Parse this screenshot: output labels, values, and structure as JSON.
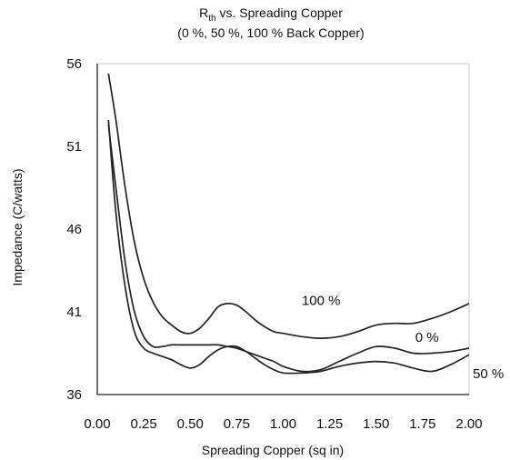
{
  "chart_data": {
    "type": "line",
    "title_main": "R",
    "title_sub": "th",
    "title_rest": " vs. Spreading Copper",
    "subtitle": "(0 %, 50 %, 100 % Back Copper)",
    "xlabel": "Spreading Copper (sq in)",
    "ylabel": "Impedance (C/watts)",
    "xlim": [
      0,
      2
    ],
    "ylim": [
      36,
      56
    ],
    "xticks": [
      "0.00",
      "0.25",
      "0.50",
      "0.75",
      "1.00",
      "1.25",
      "1.50",
      "1.75",
      "2.00"
    ],
    "yticks": [
      "36",
      "41",
      "46",
      "51",
      "56"
    ],
    "grid": false,
    "series": [
      {
        "name": "100 %",
        "x": [
          0.06,
          0.1,
          0.15,
          0.2,
          0.25,
          0.3,
          0.35,
          0.4,
          0.45,
          0.5,
          0.55,
          0.6,
          0.65,
          0.7,
          0.75,
          0.8,
          0.85,
          0.9,
          0.95,
          1.0,
          1.1,
          1.2,
          1.3,
          1.4,
          1.5,
          1.6,
          1.7,
          1.8,
          1.9,
          2.0
        ],
        "y": [
          55.4,
          52.6,
          48.5,
          45.2,
          43.0,
          41.6,
          40.7,
          40.2,
          39.8,
          39.7,
          40.0,
          40.6,
          41.3,
          41.5,
          41.4,
          41.0,
          40.5,
          40.1,
          39.8,
          39.7,
          39.5,
          39.4,
          39.5,
          39.8,
          40.2,
          40.3,
          40.3,
          40.6,
          41.0,
          41.5
        ]
      },
      {
        "name": "0 %",
        "x": [
          0.06,
          0.1,
          0.15,
          0.2,
          0.25,
          0.3,
          0.35,
          0.4,
          0.45,
          0.5,
          0.55,
          0.6,
          0.65,
          0.7,
          0.75,
          0.8,
          0.85,
          0.9,
          0.95,
          1.0,
          1.1,
          1.2,
          1.3,
          1.4,
          1.5,
          1.6,
          1.7,
          1.8,
          1.9,
          2.0
        ],
        "y": [
          52.3,
          48.5,
          44.0,
          41.0,
          39.5,
          38.9,
          38.9,
          39.0,
          39.0,
          39.0,
          39.0,
          39.0,
          39.0,
          38.9,
          38.8,
          38.6,
          38.4,
          38.2,
          38.0,
          37.7,
          37.4,
          37.5,
          38.0,
          38.5,
          38.9,
          38.8,
          38.5,
          38.5,
          38.6,
          38.8
        ]
      },
      {
        "name": "50 %",
        "x": [
          0.06,
          0.1,
          0.15,
          0.2,
          0.25,
          0.3,
          0.35,
          0.4,
          0.45,
          0.5,
          0.55,
          0.6,
          0.65,
          0.7,
          0.75,
          0.8,
          0.85,
          0.9,
          0.95,
          1.0,
          1.1,
          1.2,
          1.3,
          1.4,
          1.5,
          1.6,
          1.7,
          1.8,
          1.9,
          2.0
        ],
        "y": [
          52.6,
          47.0,
          42.5,
          39.8,
          38.8,
          38.5,
          38.3,
          38.1,
          37.8,
          37.6,
          37.8,
          38.3,
          38.7,
          38.9,
          38.9,
          38.6,
          38.2,
          37.8,
          37.5,
          37.3,
          37.3,
          37.4,
          37.7,
          37.9,
          38.0,
          37.9,
          37.6,
          37.4,
          37.8,
          38.4
        ]
      }
    ],
    "annotations": [
      {
        "text": "100 %",
        "x": 1.1,
        "y": 41.4
      },
      {
        "text": "0 %",
        "x": 1.71,
        "y": 39.2
      },
      {
        "text": "50 %",
        "x": 2.02,
        "y": 37.0
      }
    ]
  }
}
